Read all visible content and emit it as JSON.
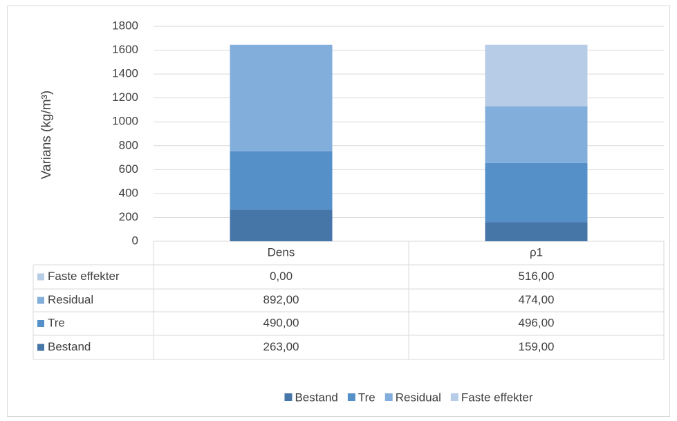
{
  "chart_data": {
    "type": "stacked-bar",
    "y_label": "Varians (kg/m³)",
    "categories": [
      "Dens",
      "ρ1"
    ],
    "series": [
      {
        "name": "Bestand",
        "color": "#4676a8",
        "values": [
          263,
          159
        ],
        "value_labels": [
          "263,00",
          "159,00"
        ]
      },
      {
        "name": "Tre",
        "color": "#5590c8",
        "values": [
          490,
          496
        ],
        "value_labels": [
          "490,00",
          "496,00"
        ]
      },
      {
        "name": "Residual",
        "color": "#82aedc",
        "values": [
          892,
          474
        ],
        "value_labels": [
          "892,00",
          "474,00"
        ]
      },
      {
        "name": "Faste effekter",
        "color": "#b6cce7",
        "values": [
          0,
          516
        ],
        "value_labels": [
          "0,00",
          "516,00"
        ]
      }
    ],
    "ylim": [
      0,
      1800
    ],
    "yticks": [
      0,
      200,
      400,
      600,
      800,
      1000,
      1200,
      1400,
      1600,
      1800
    ],
    "grid": true
  }
}
